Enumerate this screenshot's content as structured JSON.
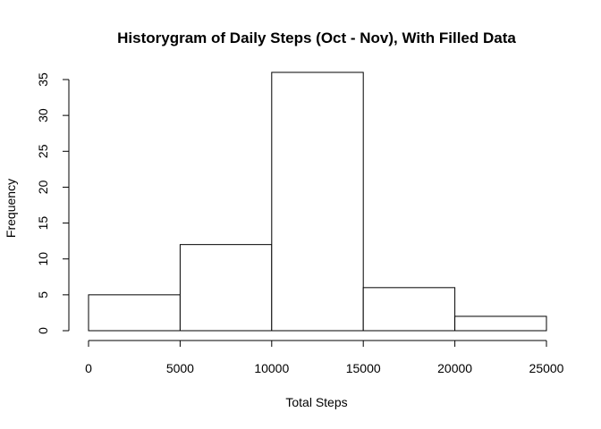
{
  "chart_data": {
    "type": "bar",
    "title": "Historygram of Daily Steps (Oct - Nov), With Filled Data",
    "xlabel": "Total Steps",
    "ylabel": "Frequency",
    "bins": [
      {
        "start": 0,
        "end": 5000,
        "value": 5
      },
      {
        "start": 5000,
        "end": 10000,
        "value": 12
      },
      {
        "start": 10000,
        "end": 15000,
        "value": 36
      },
      {
        "start": 15000,
        "end": 20000,
        "value": 6
      },
      {
        "start": 20000,
        "end": 25000,
        "value": 2
      }
    ],
    "xlim": [
      0,
      25000
    ],
    "ylim": [
      0,
      35
    ],
    "x_ticks": [
      0,
      5000,
      10000,
      15000,
      20000,
      25000
    ],
    "y_ticks": [
      0,
      5,
      10,
      15,
      20,
      25,
      30,
      35
    ],
    "grid": false,
    "colors": {
      "bar_fill": "#ffffff",
      "bar_stroke": "#000000",
      "axis": "#000000",
      "text": "#000000"
    }
  }
}
